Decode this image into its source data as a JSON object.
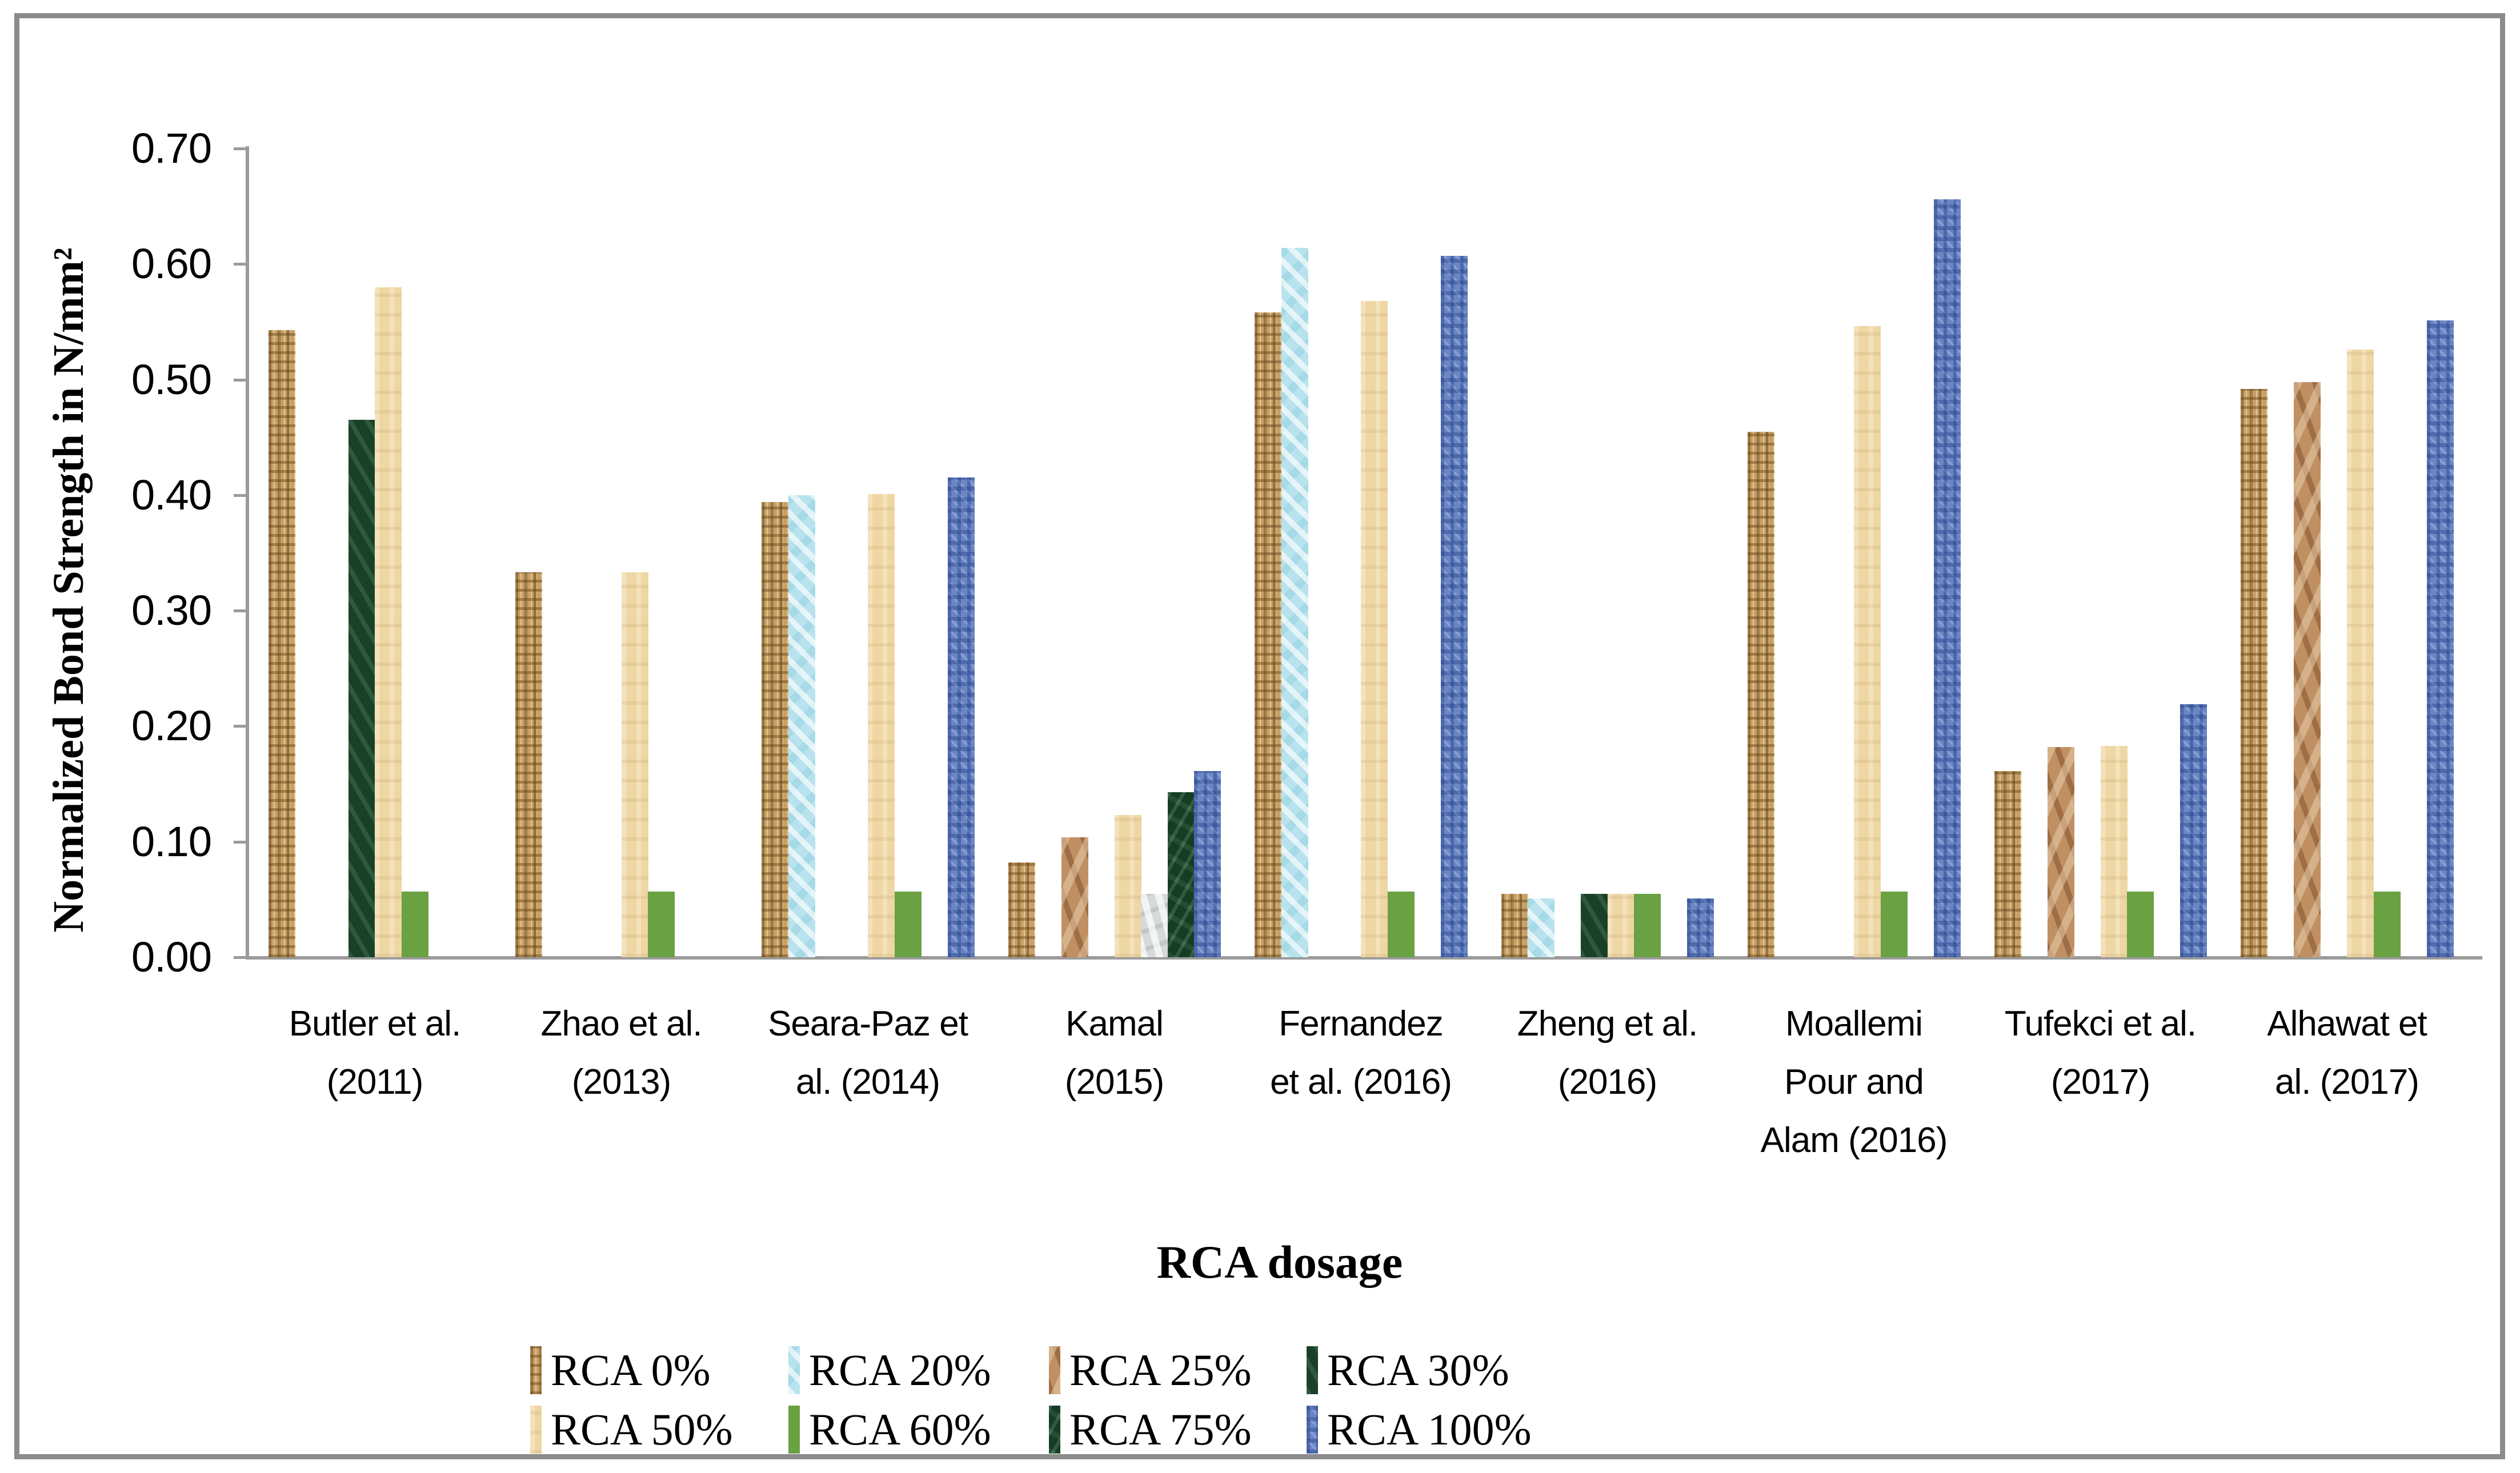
{
  "chart_data": {
    "type": "bar",
    "title": "",
    "xlabel": "RCA dosage",
    "ylabel": "Normalized Bond Strength in N/mm²",
    "ylim": [
      0,
      0.7
    ],
    "ytick_step": 0.1,
    "grid": false,
    "legend_position": "bottom",
    "axis_color": "#9b9b9b",
    "frame_color": "#8b8b8b",
    "categories": [
      {
        "label": "Butler et al. (2011)",
        "lines": [
          "Butler et al.",
          "(2011)"
        ]
      },
      {
        "label": "Zhao et al. (2013)",
        "lines": [
          "Zhao et al.",
          "(2013)"
        ]
      },
      {
        "label": "Seara-Paz et al. (2014)",
        "lines": [
          "Seara-Paz et",
          "al. (2014)"
        ]
      },
      {
        "label": "Kamal (2015)",
        "lines": [
          "Kamal",
          "(2015)"
        ]
      },
      {
        "label": "Fernandez et al. (2016)",
        "lines": [
          "Fernandez",
          "et al. (2016)"
        ]
      },
      {
        "label": "Zheng et al. (2016)",
        "lines": [
          "Zheng et al.",
          "(2016)"
        ]
      },
      {
        "label": "Moallemi Pour and Alam (2016)",
        "lines": [
          "Moallemi",
          "Pour and",
          "Alam (2016)"
        ]
      },
      {
        "label": "Tufekci et al. (2017)",
        "lines": [
          "Tufekci et al.",
          "(2017)"
        ]
      },
      {
        "label": "Alhawat et al. (2017)",
        "lines": [
          "Alhawat et",
          "al. (2017)"
        ]
      }
    ],
    "series": [
      {
        "name": "RCA 0%",
        "texture": "rca0",
        "base_color": "#c7a066",
        "values": [
          0.543,
          0.333,
          0.394,
          0.082,
          0.558,
          0.055,
          0.455,
          0.161,
          0.492
        ]
      },
      {
        "name": "RCA 20%",
        "texture": "rca20",
        "base_color": "#b8e3ee",
        "values": [
          null,
          null,
          0.4,
          null,
          0.614,
          0.051,
          null,
          null,
          null
        ]
      },
      {
        "name": "RCA 25%",
        "texture": "rca25",
        "base_color": "#c09063",
        "values": [
          null,
          null,
          null,
          0.104,
          null,
          null,
          null,
          0.182,
          0.498
        ]
      },
      {
        "name": "RCA 30%",
        "texture": "rca30",
        "base_color": "#1d4a2c",
        "values": [
          0.465,
          null,
          null,
          null,
          null,
          0.055,
          null,
          null,
          null
        ]
      },
      {
        "name": "RCA 50%",
        "texture": "rca50",
        "base_color": "#eed7a4",
        "values": [
          0.58,
          0.333,
          0.401,
          0.123,
          0.568,
          0.055,
          0.546,
          0.183,
          0.526
        ]
      },
      {
        "name": "RCA 60%",
        "texture": "rca60",
        "base_color": "#69a143",
        "values": [
          0.057,
          0.057,
          0.057,
          0.055,
          0.057,
          0.055,
          0.057,
          0.057,
          0.057
        ]
      },
      {
        "name": "RCA 75%",
        "texture": "rca75",
        "base_color": "#1b472a",
        "values": [
          null,
          null,
          null,
          0.143,
          null,
          null,
          null,
          null,
          null
        ]
      },
      {
        "name": "RCA 100%",
        "texture": "rca100",
        "base_color": "#6b86c3",
        "values": [
          null,
          null,
          0.415,
          0.161,
          0.607,
          0.051,
          0.656,
          0.219,
          0.551
        ]
      }
    ],
    "bar_texture_overrides": [
      {
        "category_index": 3,
        "series_name": "RCA 60%",
        "texture": "gray",
        "base_color": "#d8d9db"
      }
    ]
  },
  "axis": {
    "ytick_labels": [
      "0.00",
      "0.10",
      "0.20",
      "0.30",
      "0.40",
      "0.50",
      "0.60",
      "0.70"
    ]
  },
  "legend": {
    "rows": [
      [
        {
          "label": "RCA 0%",
          "texture": "rca0"
        },
        {
          "label": "RCA 20%",
          "texture": "rca20"
        },
        {
          "label": "RCA 25%",
          "texture": "rca25"
        },
        {
          "label": "RCA 30%",
          "texture": "rca30"
        }
      ],
      [
        {
          "label": "RCA 50%",
          "texture": "rca50"
        },
        {
          "label": "RCA 60%",
          "texture": "rca60"
        },
        {
          "label": "RCA 75%",
          "texture": "rca75"
        },
        {
          "label": "RCA 100%",
          "texture": "rca100"
        }
      ]
    ]
  }
}
